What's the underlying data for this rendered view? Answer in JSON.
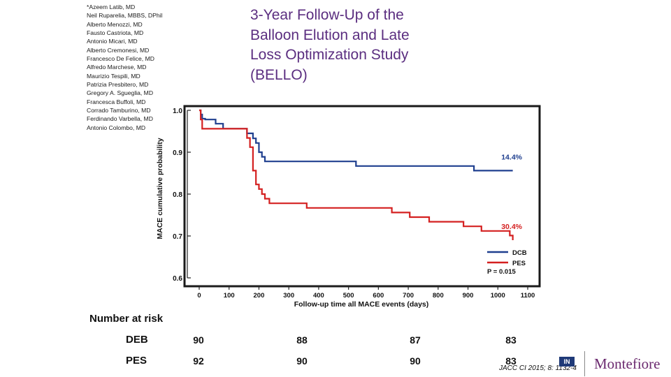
{
  "slide": {
    "title_lines": [
      "3-Year Follow-Up of the",
      "Balloon Elution and Late",
      "Loss Optimization Study",
      "(BELLO)"
    ],
    "authors": [
      "*Azeem Latib, MD",
      "Neil Ruparelia, MBBS, DPhil",
      "Alberto Menozzi, MD",
      "Fausto Castriota, MD",
      "Antonio Micari, MD",
      "Alberto Cremonesi, MD",
      "Francesco De Felice, MD",
      "Alfredo Marchese, MD",
      "Maurizio Tespili, MD",
      "Patrizia Presbitero, MD",
      "Gregory A. Sgueglia, MD",
      "Francesca Buffoli, MD",
      "Corrado Tamburino, MD",
      "Ferdinando Varbella, MD",
      "Antonio Colombo, MD"
    ],
    "citation": "JACC CI 2015; 8: 1132-4",
    "logo_text": "Montefiore",
    "logo_mark": "IN"
  },
  "chart_data": {
    "type": "line",
    "step": true,
    "title": "",
    "xlabel": "Follow-up time all MACE events (days)",
    "ylabel": "MACE cumulative probability",
    "xlim": [
      0,
      1100
    ],
    "ylim": [
      0.6,
      1.0
    ],
    "x_ticks": [
      0,
      100,
      200,
      300,
      400,
      500,
      600,
      700,
      800,
      900,
      1000,
      1100
    ],
    "y_ticks": [
      0.6,
      0.7,
      0.8,
      0.9,
      1.0
    ],
    "y_tick_labels": [
      "0.6",
      "0.7",
      "0.8",
      "0.9",
      "1.0"
    ],
    "grid": false,
    "legend_position": "bottom-right",
    "series": [
      {
        "name": "DCB",
        "color": "#1f3f8f",
        "end_label": "14.4%",
        "x": [
          0,
          5,
          10,
          20,
          35,
          55,
          70,
          80,
          150,
          160,
          180,
          190,
          200,
          210,
          220,
          525,
          600,
          920,
          1050
        ],
        "y": [
          1.0,
          0.99,
          0.98,
          0.978,
          0.978,
          0.968,
          0.968,
          0.956,
          0.956,
          0.945,
          0.933,
          0.922,
          0.9,
          0.889,
          0.878,
          0.867,
          0.867,
          0.856,
          0.856
        ]
      },
      {
        "name": "PES",
        "color": "#d42020",
        "end_label": "30.4%",
        "x": [
          0,
          5,
          10,
          150,
          160,
          170,
          180,
          190,
          200,
          210,
          220,
          235,
          360,
          530,
          645,
          705,
          770,
          885,
          945,
          1010,
          1040,
          1050
        ],
        "y": [
          1.0,
          0.978,
          0.956,
          0.956,
          0.934,
          0.912,
          0.856,
          0.823,
          0.812,
          0.8,
          0.789,
          0.778,
          0.767,
          0.767,
          0.756,
          0.745,
          0.734,
          0.723,
          0.712,
          0.712,
          0.701,
          0.69
        ]
      }
    ],
    "annotations": [
      "P = 0.015"
    ],
    "number_at_risk": {
      "title": "Number at risk",
      "rows": [
        {
          "label": "DEB",
          "values": [
            90,
            88,
            87,
            83
          ]
        },
        {
          "label": "PES",
          "values": [
            92,
            90,
            90,
            83
          ]
        }
      ]
    }
  }
}
